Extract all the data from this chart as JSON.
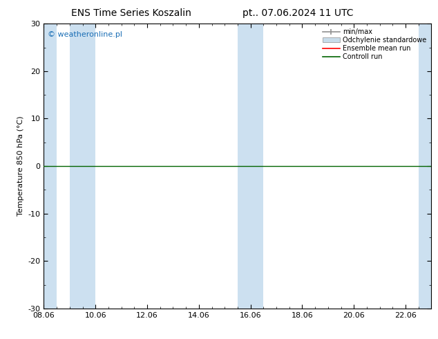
{
  "title_left": "ENS Time Series Koszalin",
  "title_right": "pt.. 07.06.2024 11 UTC",
  "ylabel": "Temperature 850 hPa (°C)",
  "watermark": "© weatheronline.pl",
  "ylim": [
    -30,
    30
  ],
  "yticks": [
    -30,
    -20,
    -10,
    0,
    10,
    20,
    30
  ],
  "x_labels": [
    "08.06",
    "10.06",
    "12.06",
    "14.06",
    "16.06",
    "18.06",
    "20.06",
    "22.06"
  ],
  "x_tick_pos": [
    0,
    2,
    4,
    6,
    8,
    10,
    12,
    14
  ],
  "xlim": [
    0,
    15.0
  ],
  "band_color": "#cce0f0",
  "zero_line_color": "#006400",
  "background_color": "#ffffff",
  "plot_bg_color": "#ffffff",
  "title_fontsize": 10,
  "label_fontsize": 8,
  "tick_fontsize": 8,
  "watermark_color": "#1a6eb5",
  "watermark_fontsize": 8,
  "legend_items": [
    "min/max",
    "Odchylenie standardowe",
    "Ensemble mean run",
    "Controll run"
  ],
  "legend_colors": [
    "#808080",
    "#b0c8d8",
    "#ff0000",
    "#006400"
  ],
  "shaded_columns": [
    [
      0.0,
      0.5
    ],
    [
      1.0,
      2.0
    ],
    [
      7.5,
      8.5
    ],
    [
      14.5,
      15.0
    ]
  ]
}
